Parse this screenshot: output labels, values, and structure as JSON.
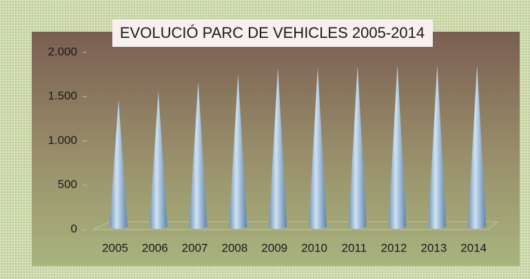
{
  "chart_data": {
    "type": "cone",
    "title": "EVOLUCIÓ PARC DE VEHICLES 2005-2014",
    "categories": [
      "2005",
      "2006",
      "2007",
      "2008",
      "2009",
      "2010",
      "2011",
      "2012",
      "2013",
      "2014"
    ],
    "values": [
      1460,
      1555,
      1670,
      1755,
      1825,
      1830,
      1850,
      1860,
      1855,
      1860
    ],
    "color": "#9fc0dc",
    "ylim": [
      0,
      2000
    ],
    "yticks": [
      0,
      500,
      {
        "value": 1000,
        "label": "1.000"
      },
      {
        "value": 1500,
        "label": "1.500"
      },
      {
        "value": 2000,
        "label": "2.000"
      }
    ],
    "grid": false
  }
}
